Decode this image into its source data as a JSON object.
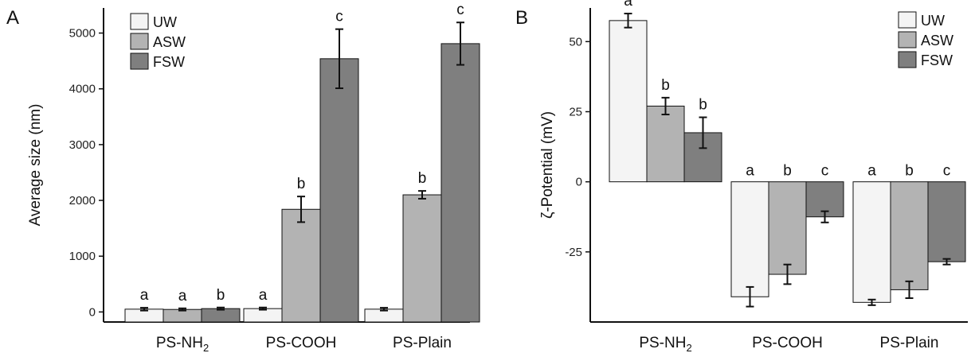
{
  "chart_data": [
    {
      "type": "bar",
      "panel_label": "A",
      "ylabel": "Average size (nm)",
      "categories": [
        "PS-NH",
        "PS-COOH",
        "PS-Plain"
      ],
      "category_subscripts": [
        "2",
        "",
        ""
      ],
      "yticks": [
        "0",
        "1000",
        "2000",
        "3000",
        "4000",
        "5000"
      ],
      "ylim": [
        -180,
        5450
      ],
      "legend": "top-left",
      "series": [
        {
          "name": "UW",
          "color": "#f4f4f4",
          "values": [
            50,
            60,
            50
          ],
          "errors": [
            25,
            20,
            25
          ],
          "letters": [
            "a",
            "a",
            ""
          ]
        },
        {
          "name": "ASW",
          "color": "#b3b3b3",
          "values": [
            45,
            1840,
            2100
          ],
          "errors": [
            20,
            230,
            70
          ],
          "letters": [
            "a",
            "b",
            "b"
          ]
        },
        {
          "name": "FSW",
          "color": "#7f7f7f",
          "values": [
            60,
            4540,
            4810
          ],
          "errors": [
            20,
            530,
            380
          ],
          "letters": [
            "b",
            "c",
            "c"
          ]
        }
      ]
    },
    {
      "type": "bar",
      "panel_label": "B",
      "ylabel": "ζ-Potential (mV)",
      "categories": [
        "PS-NH",
        "PS-COOH",
        "PS-Plain"
      ],
      "category_subscripts": [
        "2",
        "",
        ""
      ],
      "yticks": [
        "-25",
        "0",
        "25",
        "50"
      ],
      "ytick_values": [
        -25,
        0,
        25,
        50
      ],
      "ylim": [
        -50,
        62
      ],
      "legend": "top-right",
      "series": [
        {
          "name": "UW",
          "color": "#f4f4f4",
          "values": [
            57.5,
            -41,
            -43
          ],
          "errors": [
            2.5,
            3.5,
            1
          ],
          "letters": [
            "a",
            "a",
            "a"
          ]
        },
        {
          "name": "ASW",
          "color": "#b3b3b3",
          "values": [
            27,
            -33,
            -38.5
          ],
          "errors": [
            3,
            3.5,
            3
          ],
          "letters": [
            "b",
            "b",
            "b"
          ]
        },
        {
          "name": "FSW",
          "color": "#7f7f7f",
          "values": [
            17.5,
            -12.5,
            -28.5
          ],
          "errors": [
            5.5,
            2,
            1
          ],
          "letters": [
            "b",
            "c",
            "c"
          ]
        }
      ]
    }
  ]
}
